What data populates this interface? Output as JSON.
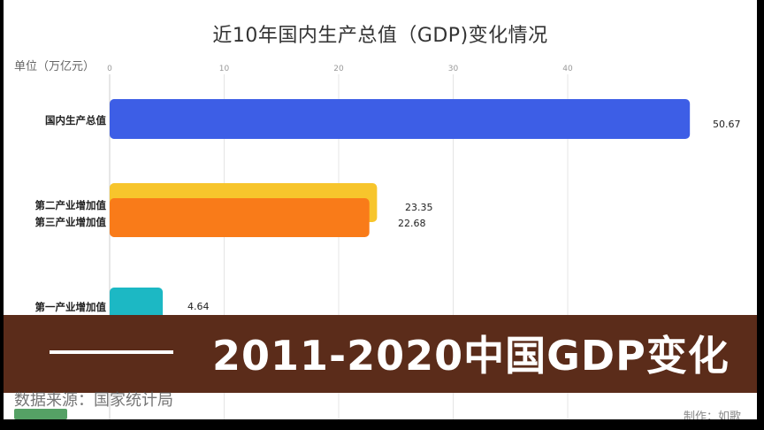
{
  "chart_data": {
    "type": "bar",
    "title": "近10年国内生产总值（GDP)变化情况",
    "unit_label": "单位（万亿元）",
    "xlim": [
      0,
      50.67
    ],
    "ticks": [
      0,
      10,
      20,
      30,
      40
    ],
    "tick_labels": [
      "0",
      "10",
      "20",
      "30",
      "40"
    ],
    "categories": [
      "国内生产总值",
      "第二产业增加值",
      "第三产业增加值",
      "第一产业增加值"
    ],
    "values": [
      50.67,
      23.35,
      22.68,
      4.64
    ],
    "value_labels": [
      "50.67",
      "23.35",
      "22.68",
      "4.64"
    ],
    "colors": [
      "#3d5ee6",
      "#f7c52c",
      "#f97b19",
      "#1cb8c4"
    ],
    "grid": true,
    "orientation": "horizontal"
  },
  "banner": {
    "text": "2011-2020中国GDP变化",
    "color": "#5b2c1a"
  },
  "footer": {
    "source": "数据来源：国家统计局",
    "maker": "制作：如歌"
  }
}
